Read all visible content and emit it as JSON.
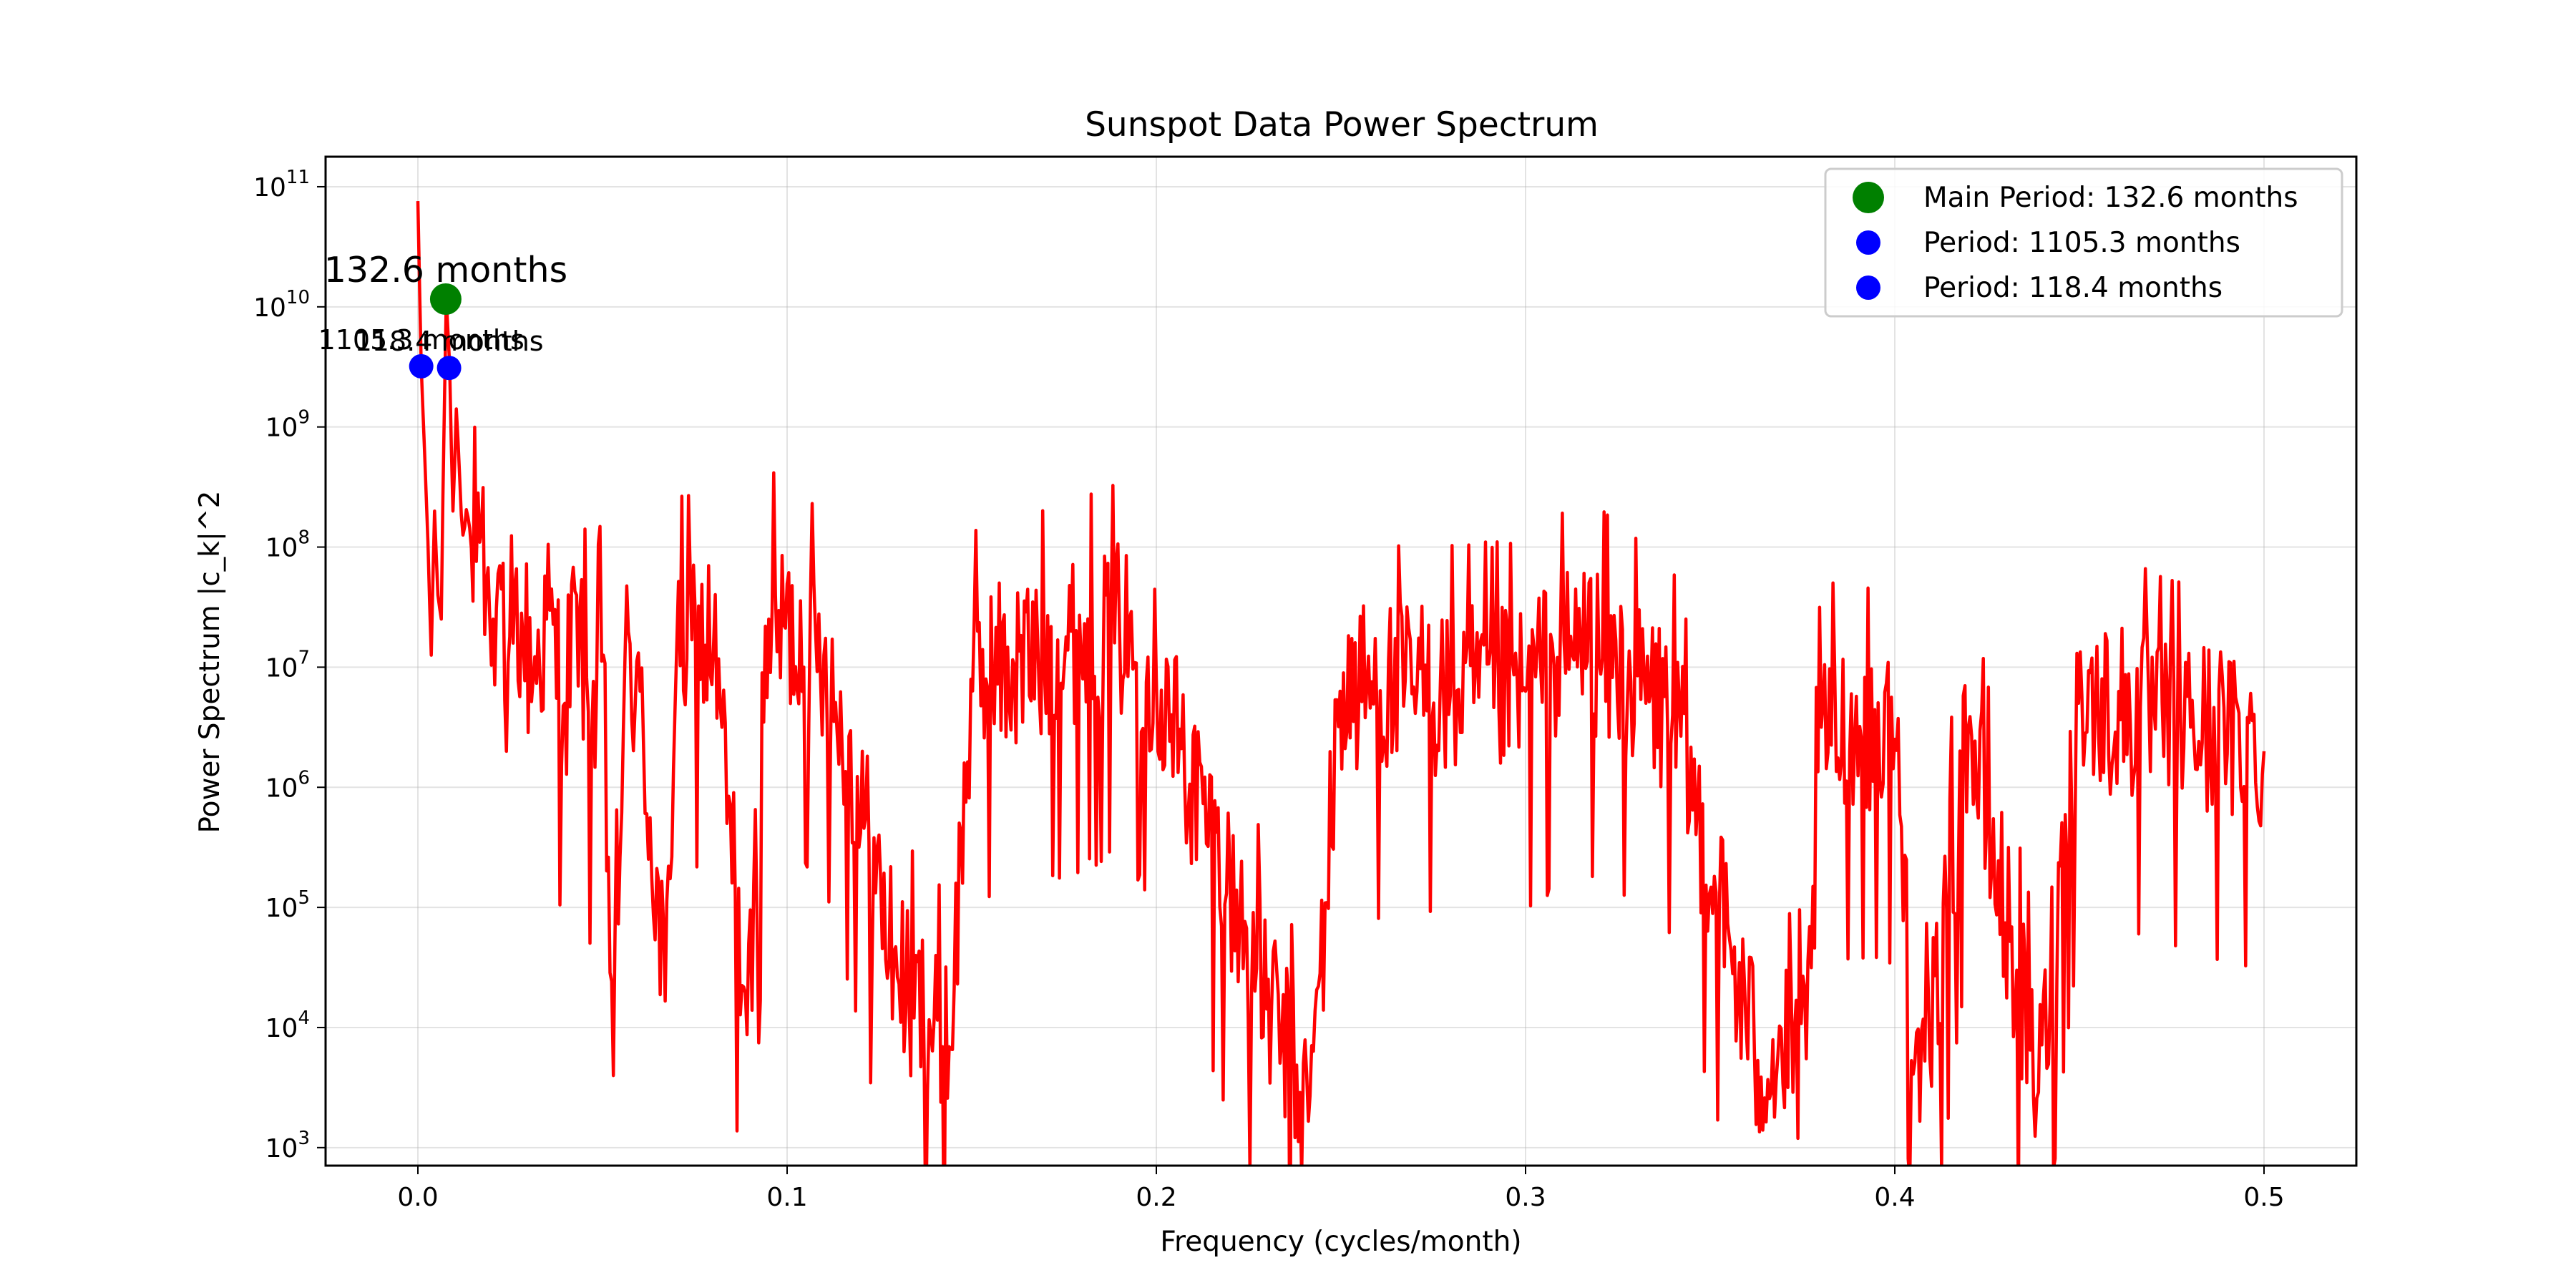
{
  "chart_data": {
    "type": "line",
    "title": "Sunspot Data Power Spectrum",
    "xlabel": "Frequency (cycles/month)",
    "ylabel": "Power Spectrum |c_k|^2",
    "xlim": [
      -0.025,
      0.525
    ],
    "ylim_log10": [
      2.85,
      11.25
    ],
    "yscale": "log",
    "grid": true,
    "legend_position": "top-right",
    "x_ticks": [
      {
        "value": 0.0,
        "label": "0.0"
      },
      {
        "value": 0.1,
        "label": "0.1"
      },
      {
        "value": 0.2,
        "label": "0.2"
      },
      {
        "value": 0.3,
        "label": "0.3"
      },
      {
        "value": 0.4,
        "label": "0.4"
      },
      {
        "value": 0.5,
        "label": "0.5"
      }
    ],
    "y_ticks": [
      {
        "exp": 3,
        "base": "10",
        "sup": "3"
      },
      {
        "exp": 4,
        "base": "10",
        "sup": "4"
      },
      {
        "exp": 5,
        "base": "10",
        "sup": "5"
      },
      {
        "exp": 6,
        "base": "10",
        "sup": "6"
      },
      {
        "exp": 7,
        "base": "10",
        "sup": "7"
      },
      {
        "exp": 8,
        "base": "10",
        "sup": "8"
      },
      {
        "exp": 9,
        "base": "10",
        "sup": "9"
      },
      {
        "exp": 10,
        "base": "10",
        "sup": "10"
      },
      {
        "exp": 11,
        "base": "10",
        "sup": "11"
      }
    ],
    "spectrum": {
      "color": "#ff0000",
      "f_max": 0.5,
      "n_points": 1105,
      "anchor_points": [
        [
          0.0,
          10.88
        ],
        [
          0.0009,
          9.5
        ],
        [
          0.0018,
          8.8
        ],
        [
          0.0027,
          8.05
        ],
        [
          0.0036,
          7.1
        ],
        [
          0.0045,
          8.3
        ],
        [
          0.0054,
          7.6
        ],
        [
          0.0063,
          7.4
        ],
        [
          0.0072,
          9.3
        ],
        [
          0.0075,
          10.07
        ],
        [
          0.008,
          9.8
        ],
        [
          0.0085,
          9.51
        ],
        [
          0.0095,
          8.3
        ],
        [
          0.0105,
          9.15
        ],
        [
          0.012,
          8.1
        ],
        [
          0.0135,
          8.25
        ],
        [
          0.015,
          7.55
        ],
        [
          0.0165,
          8.45
        ],
        [
          0.0185,
          7.7
        ],
        [
          0.0205,
          7.4
        ],
        [
          0.0225,
          7.65
        ],
        [
          0.024,
          6.3
        ],
        [
          0.026,
          7.2
        ],
        [
          0.028,
          7.45
        ],
        [
          0.031,
          6.9
        ],
        [
          0.035,
          7.4
        ],
        [
          0.04,
          6.7
        ],
        [
          0.043,
          7.6
        ],
        [
          0.047,
          6.4
        ],
        [
          0.05,
          7.1
        ],
        [
          0.053,
          3.6
        ],
        [
          0.056,
          7.1
        ],
        [
          0.06,
          6.8
        ],
        [
          0.067,
          4.22
        ],
        [
          0.07,
          7.2
        ],
        [
          0.08,
          7.2
        ],
        [
          0.0893,
          3.94
        ],
        [
          0.095,
          7.4
        ],
        [
          0.11,
          7.1
        ],
        [
          0.13,
          4.42
        ],
        [
          0.144,
          3.84
        ],
        [
          0.15,
          6.9
        ],
        [
          0.19,
          7.3
        ],
        [
          0.2,
          6.9
        ],
        [
          0.2414,
          3.22
        ],
        [
          0.25,
          6.8
        ],
        [
          0.3,
          6.8
        ],
        [
          0.315,
          7.22
        ],
        [
          0.34,
          6.6
        ],
        [
          0.362,
          3.78
        ],
        [
          0.376,
          3.74
        ],
        [
          0.38,
          6.5
        ],
        [
          0.4,
          6.4
        ],
        [
          0.407,
          3.22
        ],
        [
          0.42,
          6.5
        ],
        [
          0.439,
          3.46
        ],
        [
          0.45,
          6.7
        ],
        [
          0.48,
          6.5
        ],
        [
          0.5,
          6.3
        ]
      ]
    },
    "peaks": [
      {
        "name": "Main Period: 132.6 months",
        "frequency": 0.00754,
        "power": 11600000000,
        "label": "132.6 months",
        "color": "#008000"
      },
      {
        "name": "Period: 1105.3 months",
        "frequency": 0.000905,
        "power": 3200000000,
        "label": "1105.3 months",
        "color": "#0000ff"
      },
      {
        "name": "Period: 118.4 months",
        "frequency": 0.00845,
        "power": 3100000000,
        "label": "118.4 months",
        "color": "#0000ff"
      }
    ]
  }
}
